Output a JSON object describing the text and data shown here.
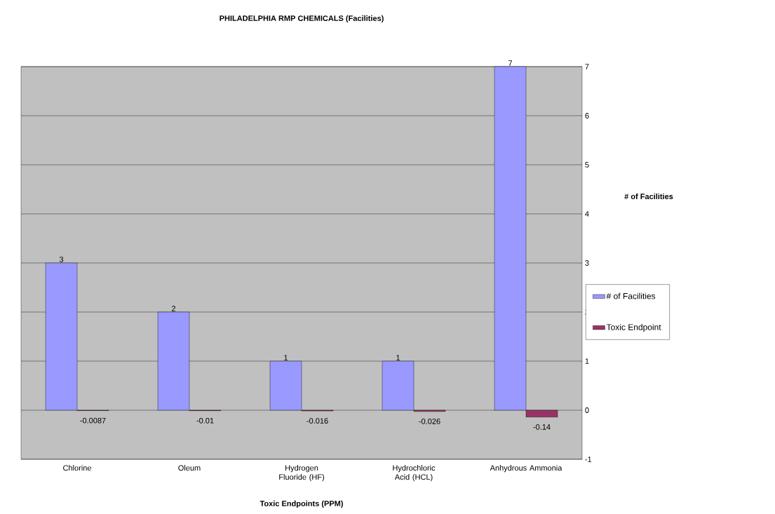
{
  "chart_data": {
    "type": "bar",
    "title": "PHILADELPHIA RMP CHEMICALS  (Facilities)",
    "xlabel": "Toxic Endpoints (PPM)",
    "ylabel": "# of Facilities",
    "categories": [
      "Chlorine",
      "Oleum",
      "Hydrogen Fluoride (HF)",
      "Hydrochloric Acid (HCL)",
      "Anhydrous Ammonia"
    ],
    "series": [
      {
        "name": "# of Facilities",
        "color": "#9999ff",
        "values": [
          3,
          2,
          1,
          1,
          7
        ]
      },
      {
        "name": "Toxic Endpoint",
        "color": "#993366",
        "values": [
          -0.0087,
          -0.01,
          -0.016,
          -0.026,
          -0.14
        ]
      }
    ],
    "ylim": [
      -1,
      7
    ],
    "yticks": [
      -1,
      0,
      1,
      2,
      3,
      4,
      5,
      6,
      7
    ],
    "grid": "y",
    "legend": "right",
    "data_labels": true
  }
}
